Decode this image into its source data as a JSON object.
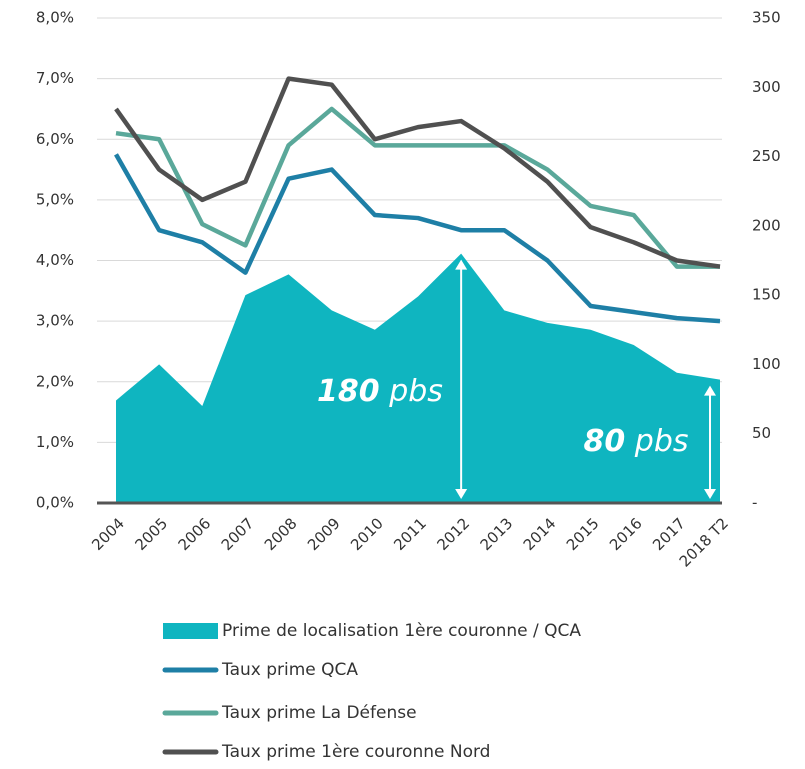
{
  "chart_data": {
    "type": "combo",
    "categories": [
      "2004",
      "2005",
      "2006",
      "2007",
      "2008",
      "2009",
      "2010",
      "2011",
      "2012",
      "2013",
      "2014",
      "2015",
      "2016",
      "2017",
      "2018 T2"
    ],
    "series": [
      {
        "name": "Prime de localisation 1ère couronne / QCA",
        "type": "area",
        "axis": "y2",
        "color": "#0fb5c0",
        "values": [
          74,
          100,
          70,
          150,
          165,
          139,
          125,
          149,
          180,
          139,
          130,
          125,
          114,
          94,
          89
        ]
      },
      {
        "name": "Taux prime QCA",
        "type": "line",
        "color": "#1e7fa6",
        "values": [
          5.75,
          4.5,
          4.3,
          3.8,
          5.35,
          5.5,
          4.75,
          4.7,
          4.5,
          4.5,
          4.0,
          3.25,
          3.15,
          3.05,
          3.0
        ]
      },
      {
        "name": "Taux prime La Défense",
        "type": "line",
        "color": "#5aa89a",
        "values": [
          6.1,
          6.0,
          4.6,
          4.25,
          5.9,
          6.5,
          5.9,
          5.9,
          5.9,
          5.9,
          5.5,
          4.9,
          4.75,
          3.9,
          3.9
        ]
      },
      {
        "name": "Taux prime 1ère couronne Nord",
        "type": "line",
        "color": "#505050",
        "values": [
          6.5,
          5.5,
          5.0,
          5.3,
          7.0,
          6.9,
          6.0,
          6.2,
          6.3,
          5.85,
          5.3,
          4.55,
          4.3,
          4.0,
          3.9
        ]
      }
    ],
    "ylim": [
      0,
      8
    ],
    "yticks": [
      {
        "value": 0,
        "label": "0,0%"
      },
      {
        "value": 1,
        "label": "1,0%"
      },
      {
        "value": 2,
        "label": "2,0%"
      },
      {
        "value": 3,
        "label": "3,0%"
      },
      {
        "value": 4,
        "label": "4,0%"
      },
      {
        "value": 5,
        "label": "5,0%"
      },
      {
        "value": 6,
        "label": "6,0%"
      },
      {
        "value": 7,
        "label": "7,0%"
      },
      {
        "value": 8,
        "label": "8,0%"
      }
    ],
    "y2lim": [
      0,
      350
    ],
    "y2ticks": [
      {
        "value": 0,
        "label": "-"
      },
      50,
      100,
      150,
      200,
      250,
      300,
      350
    ],
    "annotations": [
      {
        "number": "180",
        "unit": "pbs"
      },
      {
        "number": "80",
        "unit": "pbs"
      }
    ],
    "legend": "bottom"
  }
}
